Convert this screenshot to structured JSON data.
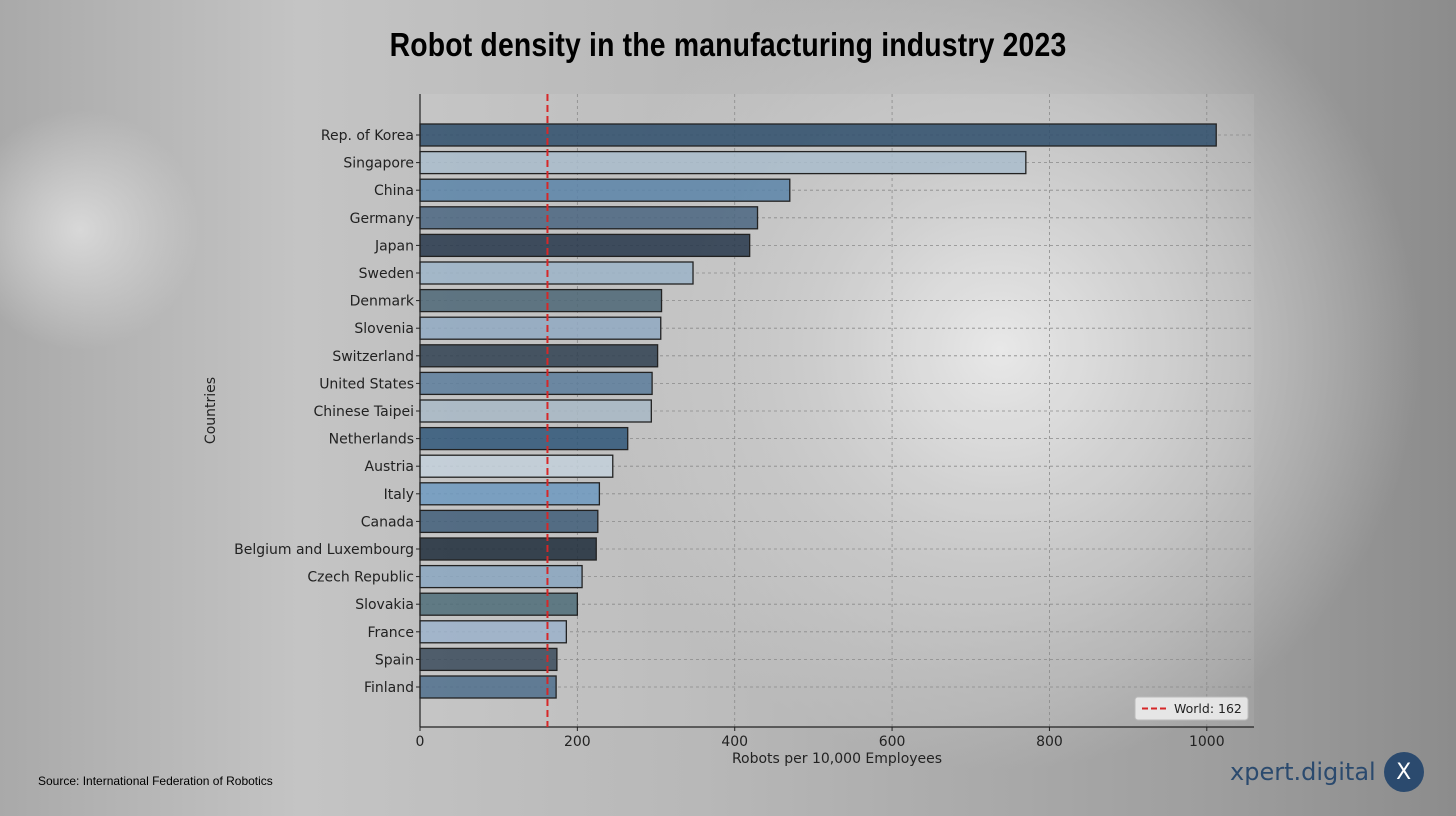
{
  "chart_data": {
    "type": "bar",
    "orientation": "horizontal",
    "title": "Robot density in the manufacturing industry 2023",
    "xlabel": "Robots per 10,000 Employees",
    "ylabel": "Countries",
    "xlim": [
      0,
      1060
    ],
    "xticks": [
      0,
      200,
      400,
      600,
      800,
      1000
    ],
    "grid": true,
    "categories": [
      "Rep. of Korea",
      "Singapore",
      "China",
      "Germany",
      "Japan",
      "Sweden",
      "Denmark",
      "Slovenia",
      "Switzerland",
      "United States",
      "Chinese Taipei",
      "Netherlands",
      "Austria",
      "Italy",
      "Canada",
      "Belgium and Luxembourg",
      "Czech Republic",
      "Slovakia",
      "France",
      "Spain",
      "Finland"
    ],
    "values": [
      1012,
      770,
      470,
      429,
      419,
      347,
      307,
      306,
      302,
      295,
      294,
      264,
      245,
      228,
      226,
      224,
      206,
      200,
      186,
      174,
      173
    ],
    "colors": [
      "#2e4d6b",
      "#a9bccb",
      "#5a84a8",
      "#4a6580",
      "#26364a",
      "#9cb4c8",
      "#4c6676",
      "#91a9c2",
      "#2f3f50",
      "#5c7d9b",
      "#a8b8c6",
      "#2f5678",
      "#c3d0db",
      "#6d99bf",
      "#3f5d78",
      "#1d2b3a",
      "#8aa6bf",
      "#4e6c78",
      "#9bb2ca",
      "#3a4a5a",
      "#4f6e8c"
    ],
    "reference_line": {
      "label": "World: 162",
      "value": 162,
      "color": "#d62728",
      "style": "dashed"
    },
    "legend_position": "bottom-right"
  },
  "source": "Source: International Federation of Robotics",
  "logo": {
    "text": "xpert.digital",
    "mark": "X"
  }
}
